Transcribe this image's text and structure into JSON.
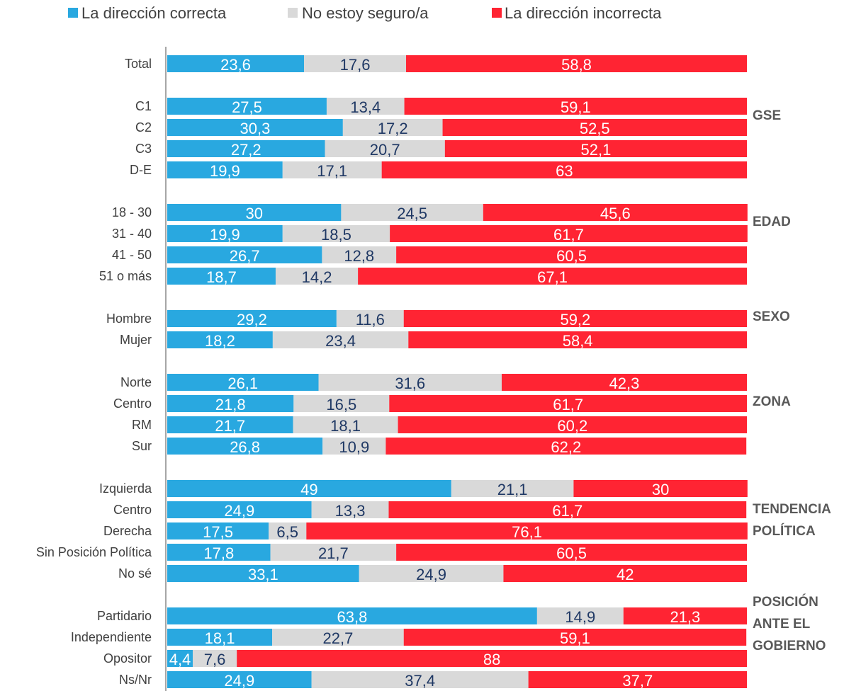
{
  "chart_data": {
    "type": "bar",
    "orientation": "horizontal",
    "stacked": true,
    "xlim": [
      0,
      100
    ],
    "grid": false,
    "legend_position": "top",
    "series": [
      {
        "name": "La dirección correcta",
        "color": "#29A8E0",
        "label_color": "#ffffff",
        "values": [
          23.6,
          27.5,
          30.3,
          27.2,
          19.9,
          30,
          19.9,
          26.7,
          18.7,
          29.2,
          18.2,
          26.1,
          21.8,
          21.7,
          26.8,
          49,
          24.9,
          17.5,
          17.8,
          33.1,
          63.8,
          18.1,
          4.4,
          24.9
        ],
        "labels": [
          "23,6",
          "27,5",
          "30,3",
          "27,2",
          "19,9",
          "30",
          "19,9",
          "26,7",
          "18,7",
          "29,2",
          "18,2",
          "26,1",
          "21,8",
          "21,7",
          "26,8",
          "49",
          "24,9",
          "17,5",
          "17,8",
          "33,1",
          "63,8",
          "18,1",
          "4,4",
          "24,9"
        ]
      },
      {
        "name": "No estoy seguro/a",
        "color": "#D9D9D9",
        "label_color": "#1F3864",
        "values": [
          17.6,
          13.4,
          17.2,
          20.7,
          17.1,
          24.5,
          18.5,
          12.8,
          14.2,
          11.6,
          23.4,
          31.6,
          16.5,
          18.1,
          10.9,
          21.1,
          13.3,
          6.5,
          21.7,
          24.9,
          14.9,
          22.7,
          7.6,
          37.4
        ],
        "labels": [
          "17,6",
          "13,4",
          "17,2",
          "20,7",
          "17,1",
          "24,5",
          "18,5",
          "12,8",
          "14,2",
          "11,6",
          "23,4",
          "31,6",
          "16,5",
          "18,1",
          "10,9",
          "21,1",
          "13,3",
          "6,5",
          "21,7",
          "24,9",
          "14,9",
          "22,7",
          "7,6",
          "37,4"
        ]
      },
      {
        "name": "La dirección incorrecta",
        "color": "#FF2433",
        "label_color": "#ffffff",
        "values": [
          58.8,
          59.1,
          52.5,
          52.1,
          63,
          45.6,
          61.7,
          60.5,
          67.1,
          59.2,
          58.4,
          42.3,
          61.7,
          60.2,
          62.2,
          30,
          61.7,
          76.1,
          60.5,
          42,
          21.3,
          59.1,
          88,
          37.7
        ],
        "labels": [
          "58,8",
          "59,1",
          "52,5",
          "52,1",
          "63",
          "45,6",
          "61,7",
          "60,5",
          "67,1",
          "59,2",
          "58,4",
          "42,3",
          "61,7",
          "60,2",
          "62,2",
          "30",
          "61,7",
          "76,1",
          "60,5",
          "42",
          "21,3",
          "59,1",
          "88",
          "37,7"
        ]
      }
    ],
    "categories": [
      "Total",
      "C1",
      "C2",
      "C3",
      "D-E",
      "18 - 30",
      "31 - 40",
      "41 - 50",
      "51 o más",
      "Hombre",
      "Mujer",
      "Norte",
      "Centro",
      "RM",
      "Sur",
      "Izquierda",
      "Centro",
      "Derecha",
      "Sin Posición Política",
      "No sé",
      "Partidario",
      "Independiente",
      "Opositor",
      "Ns/Nr"
    ],
    "groups": [
      {
        "label_lines": [
          "GSE"
        ]
      },
      {
        "label_lines": [
          "EDAD"
        ]
      },
      {
        "label_lines": [
          "SEXO"
        ]
      },
      {
        "label_lines": [
          "ZONA"
        ]
      },
      {
        "label_lines": [
          "TENDENCIA",
          "POLÍTICA"
        ]
      },
      {
        "label_lines": [
          "POSICIÓN",
          "ANTE EL",
          "GOBIERNO"
        ]
      }
    ]
  }
}
